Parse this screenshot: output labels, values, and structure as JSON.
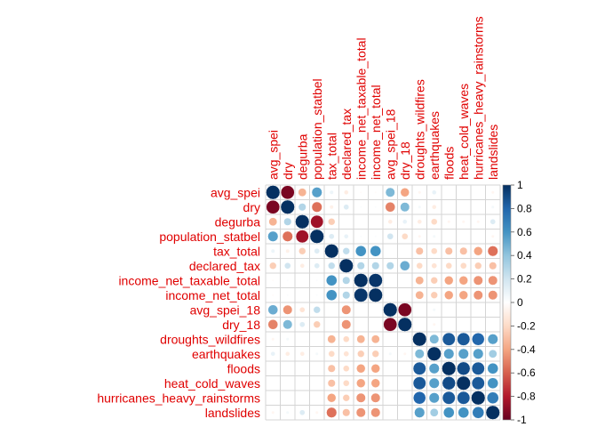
{
  "chart_data": {
    "type": "heatmap",
    "style": "circle correlation matrix",
    "variables": [
      "avg_spei",
      "dry",
      "degurba",
      "population_statbel",
      "tax_total",
      "declared_tax",
      "income_net_taxable_total",
      "income_net_total",
      "avg_spei_18",
      "dry_18",
      "droughts_wildfires",
      "earthquakes",
      "floods",
      "heat_cold_waves",
      "hurricanes_heavy_rainstorms",
      "landslides"
    ],
    "matrix": [
      [
        1.0,
        -0.95,
        -0.35,
        0.55,
        0.08,
        -0.1,
        -0.02,
        -0.02,
        0.45,
        -0.4,
        -0.05,
        0.1,
        0.0,
        0.0,
        0.0,
        -0.05
      ],
      [
        -0.95,
        1.0,
        0.3,
        -0.55,
        -0.08,
        0.15,
        0.02,
        0.02,
        -0.5,
        0.45,
        0.05,
        -0.1,
        0.0,
        0.0,
        0.0,
        0.05
      ],
      [
        -0.35,
        0.3,
        1.0,
        -0.85,
        -0.25,
        0.0,
        0.0,
        0.0,
        -0.1,
        0.1,
        -0.1,
        -0.2,
        -0.05,
        -0.05,
        -0.05,
        0.15
      ],
      [
        0.55,
        -0.55,
        -0.85,
        1.0,
        0.15,
        0.1,
        0.02,
        0.02,
        0.2,
        -0.2,
        -0.05,
        0.05,
        0.0,
        0.0,
        0.0,
        -0.05
      ],
      [
        0.08,
        -0.08,
        -0.25,
        0.15,
        1.0,
        0.25,
        0.6,
        0.6,
        0.0,
        0.0,
        -0.3,
        -0.2,
        -0.3,
        -0.3,
        -0.4,
        -0.55
      ],
      [
        -0.25,
        0.2,
        -0.1,
        0.15,
        0.25,
        1.0,
        0.3,
        0.3,
        0.3,
        0.5,
        -0.2,
        -0.15,
        -0.2,
        -0.2,
        -0.25,
        -0.3
      ],
      [
        -0.02,
        0.02,
        0.0,
        0.02,
        0.6,
        0.3,
        1.0,
        0.98,
        0.0,
        0.0,
        -0.35,
        -0.25,
        -0.4,
        -0.4,
        -0.45,
        -0.45
      ],
      [
        -0.02,
        0.02,
        0.0,
        0.02,
        0.6,
        0.3,
        0.98,
        1.0,
        0.0,
        0.0,
        -0.35,
        -0.25,
        -0.4,
        -0.4,
        -0.45,
        -0.45
      ],
      [
        0.5,
        -0.45,
        -0.15,
        0.25,
        0.0,
        -0.45,
        0.0,
        0.0,
        1.0,
        -0.95,
        0.0,
        0.05,
        0.0,
        0.0,
        0.0,
        0.0
      ],
      [
        -0.5,
        0.45,
        0.15,
        -0.25,
        0.0,
        -0.45,
        0.0,
        0.0,
        -0.95,
        1.0,
        0.0,
        -0.05,
        0.0,
        0.0,
        0.0,
        0.0
      ],
      [
        -0.05,
        0.05,
        0.0,
        0.0,
        -0.35,
        -0.2,
        -0.35,
        -0.35,
        0.0,
        0.0,
        1.0,
        0.45,
        0.85,
        0.85,
        0.8,
        0.55
      ],
      [
        0.1,
        -0.1,
        -0.1,
        0.05,
        -0.2,
        -0.15,
        -0.25,
        -0.25,
        0.05,
        -0.05,
        0.45,
        1.0,
        0.55,
        0.55,
        0.55,
        0.35
      ],
      [
        0.0,
        0.0,
        0.0,
        0.0,
        -0.3,
        -0.2,
        -0.4,
        -0.4,
        0.0,
        0.0,
        0.85,
        0.55,
        1.0,
        0.9,
        0.85,
        0.6
      ],
      [
        0.0,
        0.0,
        0.0,
        0.0,
        -0.3,
        -0.2,
        -0.4,
        -0.4,
        0.0,
        0.0,
        0.85,
        0.55,
        0.9,
        1.0,
        0.85,
        0.6
      ],
      [
        0.0,
        0.0,
        0.0,
        0.0,
        -0.4,
        -0.25,
        -0.45,
        -0.45,
        0.0,
        0.0,
        0.8,
        0.55,
        0.85,
        0.85,
        1.0,
        0.7
      ],
      [
        -0.05,
        0.05,
        0.15,
        -0.05,
        -0.55,
        -0.3,
        -0.45,
        -0.45,
        0.0,
        0.0,
        0.55,
        0.35,
        0.6,
        0.6,
        0.7,
        1.0
      ]
    ],
    "colorbar": {
      "ticks": [
        1,
        0.8,
        0.6,
        0.4,
        0.2,
        0,
        -0.2,
        -0.4,
        -0.6,
        -0.8,
        -1
      ],
      "tick_labels": [
        "1",
        "0.8",
        "0.6",
        "0.4",
        "0.2",
        "0",
        "-0.2",
        "-0.4",
        "-0.6",
        "-0.8",
        "-1"
      ]
    },
    "label_color": "#e00000",
    "grid": true
  }
}
